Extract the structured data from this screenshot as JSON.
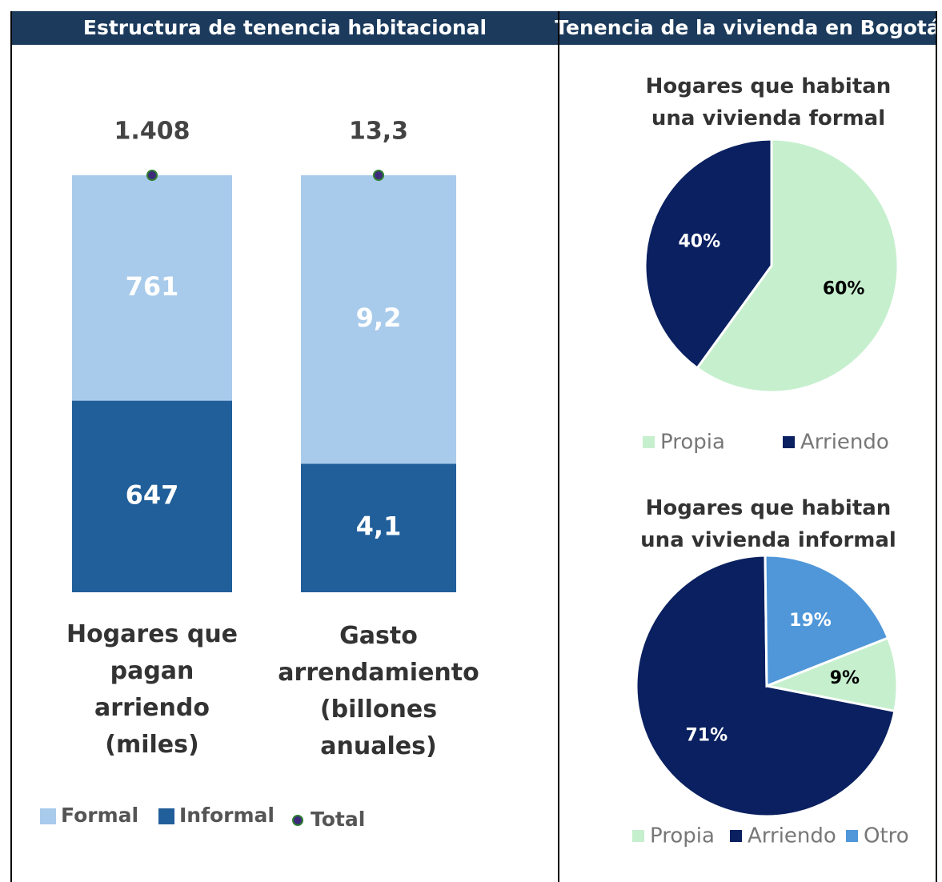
{
  "headers": [
    "Estructura de tenencia habitacional",
    "Tenencia de la vivienda en Bogotá"
  ],
  "chart_data": [
    {
      "type": "bar",
      "stacked": true,
      "categories": [
        "Hogares que pagan arriendo (miles)",
        "Gasto arrendamiento (billones anuales)"
      ],
      "series": [
        {
          "name": "Formal",
          "color": "#a9cbeb",
          "values": [
            761,
            9.2
          ],
          "value_labels": [
            "761",
            "9,2"
          ]
        },
        {
          "name": "Informal",
          "color": "#215f9a",
          "values": [
            647,
            4.1
          ],
          "value_labels": [
            "647",
            "4,1"
          ]
        },
        {
          "name": "Total",
          "color": "#3d2a7a",
          "mark": "dot",
          "values": [
            1408,
            13.3
          ],
          "value_labels": [
            "1.408",
            "13,3"
          ]
        }
      ]
    },
    {
      "type": "pie",
      "title": "Hogares que habitan una vivienda formal",
      "first_slice_angle": 0,
      "categories": [
        "Propia",
        "Arriendo"
      ],
      "values": [
        60,
        40
      ],
      "value_labels": [
        "60%",
        "40%"
      ],
      "colors": [
        "#c6efce",
        "#0a2060"
      ]
    },
    {
      "type": "pie",
      "title": "Hogares que habitan una vivienda informal",
      "first_slice_angle": 68.4,
      "categories": [
        "Propia",
        "Arriendo",
        "Otro"
      ],
      "values": [
        9,
        71,
        19
      ],
      "value_labels": [
        "9%",
        "71%",
        "19%"
      ],
      "colors": [
        "#c6efce",
        "#0a2060",
        "#4f97d9"
      ]
    }
  ]
}
